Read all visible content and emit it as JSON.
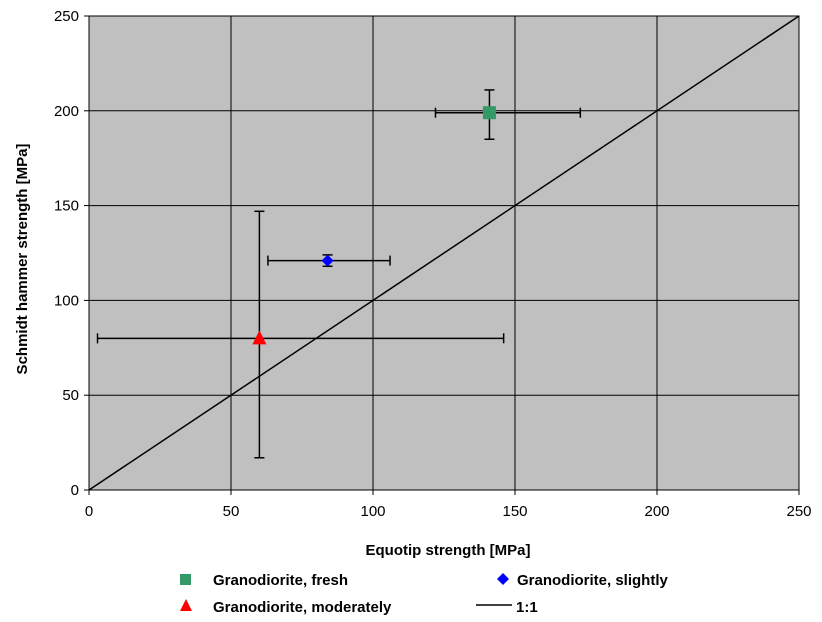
{
  "chart_data": {
    "type": "scatter",
    "xlabel": "Equotip strength [MPa]",
    "ylabel": "Schmidt hammer strength [MPa]",
    "xlim": [
      0,
      250
    ],
    "ylim": [
      0,
      250
    ],
    "x_ticks": [
      "0",
      "50",
      "100",
      "150",
      "200",
      "250"
    ],
    "y_ticks": [
      "0",
      "50",
      "100",
      "150",
      "200",
      "250"
    ],
    "grid": true,
    "plot_background": "#c0c0c0",
    "legend_position": "bottom",
    "series": [
      {
        "name": "Granodiorite, fresh",
        "marker": "square",
        "color": "#339966",
        "x": 141,
        "y": 199,
        "x_err": [
          122,
          173
        ],
        "y_err": [
          185,
          211
        ]
      },
      {
        "name": "Granodiorite, slightly",
        "marker": "diamond",
        "color": "#0000ff",
        "x": 84,
        "y": 121,
        "x_err": [
          63,
          106
        ],
        "y_err": [
          118,
          124
        ]
      },
      {
        "name": "Granodiorite, moderately",
        "marker": "triangle",
        "color": "#ff0000",
        "x": 60,
        "y": 80,
        "x_err": [
          3,
          146
        ],
        "y_err": [
          17,
          147
        ]
      }
    ],
    "reference_line": {
      "name": "1:1",
      "from": [
        0,
        0
      ],
      "to": [
        250,
        250
      ],
      "color": "#000000"
    }
  }
}
